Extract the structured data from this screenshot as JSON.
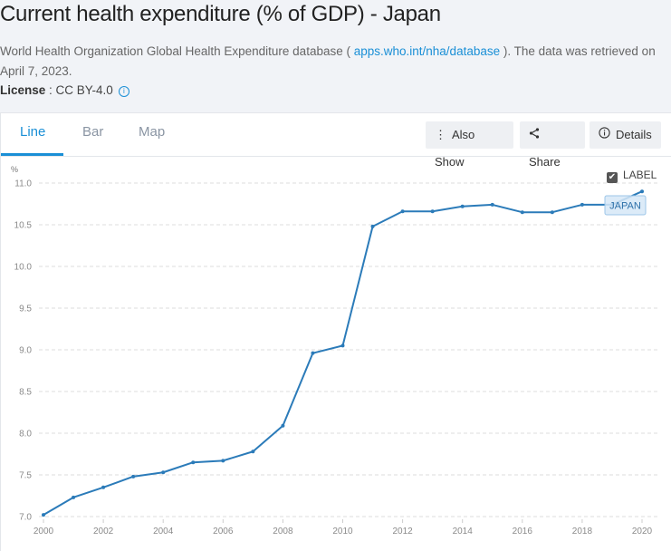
{
  "header": {
    "title": "Current health expenditure (% of GDP) - Japan",
    "source_prefix": "World Health Organization Global Health Expenditure database ( ",
    "source_link": "apps.who.int/nha/database",
    "source_suffix": " ). The data was retrieved on April 7, 2023.",
    "license_label": "License",
    "license_value": " : CC BY-4.0"
  },
  "tabs": [
    {
      "label": "Line",
      "active": true
    },
    {
      "label": "Bar",
      "active": false
    },
    {
      "label": "Map",
      "active": false
    }
  ],
  "toolbar": {
    "also_show": "Also Show",
    "share": "Share",
    "details": "Details"
  },
  "label_toggle": {
    "label": "LABEL",
    "checked": true
  },
  "colors": {
    "accent": "#1a8fd6",
    "series": "#2b7bb9",
    "label_bg": "#d6e8f7"
  },
  "chart_data": {
    "type": "line",
    "title": "Current health expenditure (% of GDP) - Japan",
    "xlabel": "",
    "ylabel": "%",
    "x": [
      2000,
      2001,
      2002,
      2003,
      2004,
      2005,
      2006,
      2007,
      2008,
      2009,
      2010,
      2011,
      2012,
      2013,
      2014,
      2015,
      2016,
      2017,
      2018,
      2019,
      2020
    ],
    "series": [
      {
        "name": "JAPAN",
        "values": [
          7.02,
          7.23,
          7.35,
          7.48,
          7.53,
          7.65,
          7.67,
          7.78,
          8.09,
          8.96,
          9.05,
          10.48,
          10.66,
          10.66,
          10.72,
          10.74,
          10.65,
          10.65,
          10.74,
          10.74,
          10.9
        ]
      }
    ],
    "ylim": [
      7.0,
      11.0
    ],
    "yticks": [
      "7.0",
      "7.5",
      "8.0",
      "8.5",
      "9.0",
      "9.5",
      "10.0",
      "10.5",
      "11.0"
    ],
    "xticks": [
      "2000",
      "2002",
      "2004",
      "2006",
      "2008",
      "2010",
      "2012",
      "2014",
      "2016",
      "2018",
      "2020"
    ],
    "grid": true,
    "legend": "none",
    "series_label": "JAPAN"
  }
}
